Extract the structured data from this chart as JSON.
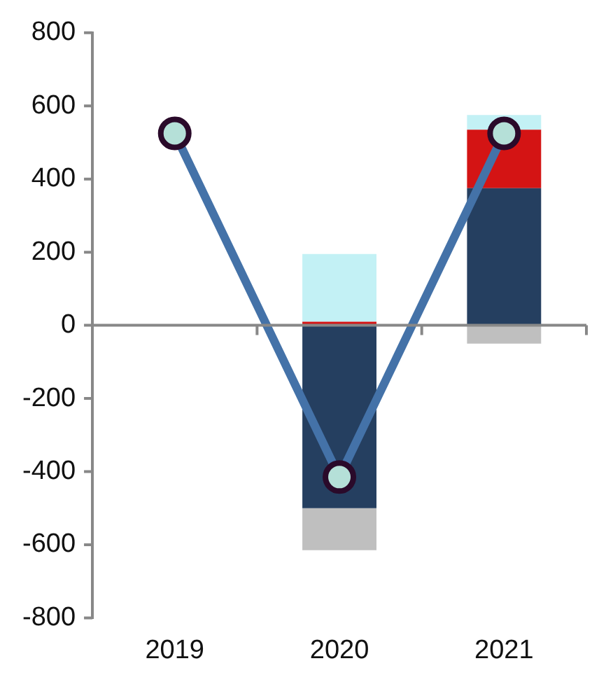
{
  "chart_data": {
    "type": "bar",
    "stacked": true,
    "categories": [
      "2019",
      "2020",
      "2021"
    ],
    "series": [
      {
        "color": "#253f60",
        "values": [
          null,
          -500,
          375
        ]
      },
      {
        "color": "#d41414",
        "values": [
          null,
          10,
          160
        ]
      },
      {
        "color": "#c3f1f5",
        "values": [
          null,
          185,
          40
        ]
      },
      {
        "color": "#bfbfbf",
        "values": [
          null,
          -115,
          -50
        ]
      },
      {
        "type": "line",
        "color": "#4472a8",
        "values": [
          525,
          -415,
          525
        ],
        "marker": "circle"
      }
    ],
    "ylim": [
      -800,
      800
    ],
    "yticks": [
      -800,
      -600,
      -400,
      -200,
      0,
      200,
      400,
      600,
      800
    ],
    "legend": false
  }
}
